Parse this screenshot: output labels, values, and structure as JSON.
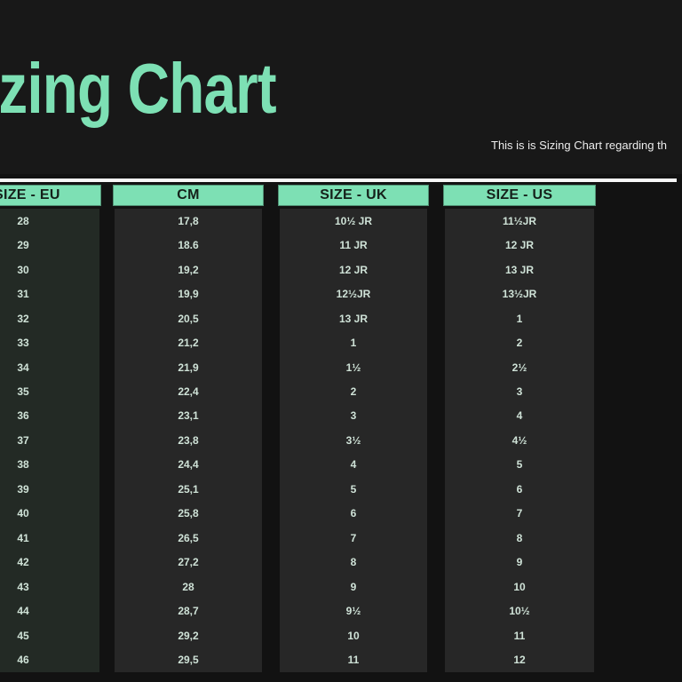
{
  "header": {
    "title": "Sizing Chart",
    "subtitle": "This is is Sizing Chart regarding th"
  },
  "colors": {
    "background": "#181818",
    "table_backdrop": "#121212",
    "column_body": "#272727",
    "column_body_eu": "#232a25",
    "accent_mint": "#7de0b4",
    "divider": "#f7f7f7",
    "row_text": "#cfe2d7",
    "header_text": "#15201a"
  },
  "chart_data": {
    "type": "table",
    "title": "Sizing Chart",
    "legend_position": "none",
    "grid": false,
    "columns": [
      {
        "id": "size-eu",
        "header": "SIZE - EU",
        "values": [
          "28",
          "29",
          "30",
          "31",
          "32",
          "33",
          "34",
          "35",
          "36",
          "37",
          "38",
          "39",
          "40",
          "41",
          "42",
          "43",
          "44",
          "45",
          "46"
        ]
      },
      {
        "id": "cm",
        "header": "CM",
        "values": [
          "17,8",
          "18.6",
          "19,2",
          "19,9",
          "20,5",
          "21,2",
          "21,9",
          "22,4",
          "23,1",
          "23,8",
          "24,4",
          "25,1",
          "25,8",
          "26,5",
          "27,2",
          "28",
          "28,7",
          "29,2",
          "29,5"
        ]
      },
      {
        "id": "size-uk",
        "header": "SIZE - UK",
        "values": [
          "10½ JR",
          "11 JR",
          "12 JR",
          "12½JR",
          "13 JR",
          "1",
          "1½",
          "2",
          "3",
          "3½",
          "4",
          "5",
          "6",
          "7",
          "8",
          "9",
          "9½",
          "10",
          "11"
        ]
      },
      {
        "id": "size-us",
        "header": "SIZE - US",
        "values": [
          "11½JR",
          "12 JR",
          "13 JR",
          "13½JR",
          "1",
          "2",
          "2½",
          "3",
          "4",
          "4½",
          "5",
          "6",
          "7",
          "8",
          "9",
          "10",
          "10½",
          "11",
          "12"
        ]
      }
    ]
  }
}
